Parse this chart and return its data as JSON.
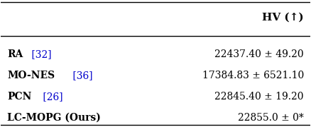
{
  "title": "HV (↑)",
  "rows": [
    {
      "method_bold": "RA",
      "method_ref": " [32]",
      "value": "22437.40 ± 49.20"
    },
    {
      "method_bold": "MO-NES",
      "method_ref": " [36]",
      "value": "17384.83 ± 6521.10"
    },
    {
      "method_bold": "PCN",
      "method_ref": " [26]",
      "value": "22845.40 ± 19.20"
    },
    {
      "method_bold": "LC-MOPG (Ours)",
      "method_ref": "",
      "value": "22855.0 ± 0*"
    }
  ],
  "bg_color": "#ffffff",
  "header_color": "#000000",
  "ref_color": "#0000cc",
  "text_color": "#000000",
  "figsize": [
    4.38,
    1.8
  ],
  "dpi": 100
}
